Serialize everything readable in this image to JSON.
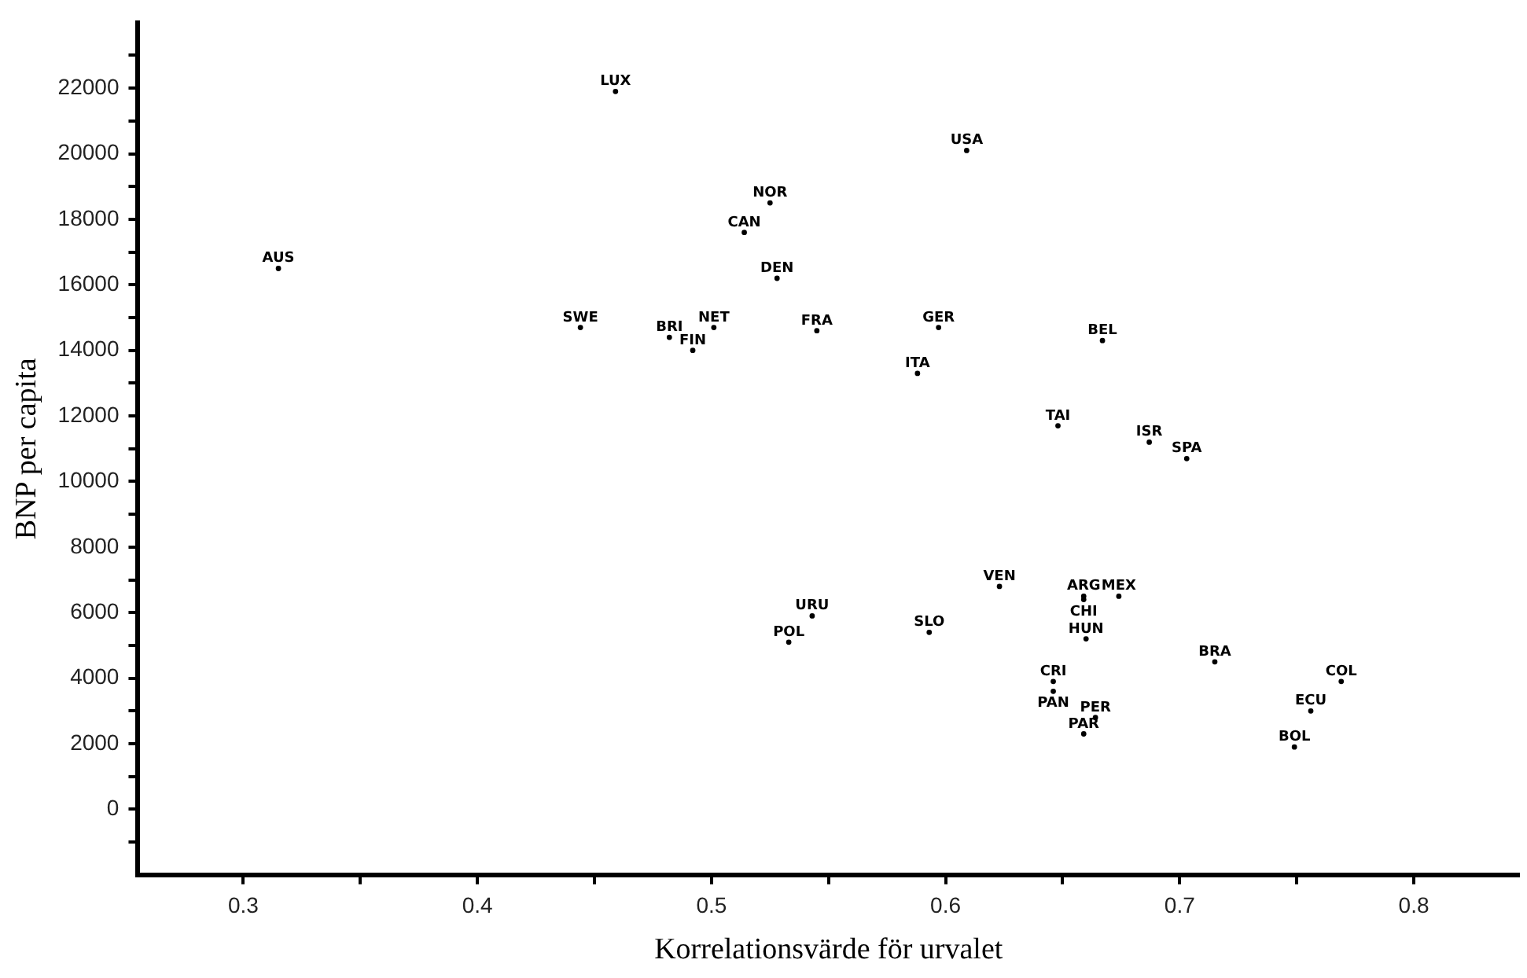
{
  "chart_data": {
    "type": "scatter",
    "xlabel": "Korrelationsvärde för urvalet",
    "ylabel": "BNP per capita",
    "marker": "circle",
    "grid": false,
    "legend": false,
    "xlim": [
      0.255,
      0.845
    ],
    "xticks": [
      0.3,
      {
        "value": 0.35,
        "label": null
      },
      0.4,
      {
        "value": 0.45,
        "label": null
      },
      0.5,
      {
        "value": 0.55,
        "label": null
      },
      0.6,
      {
        "value": 0.65,
        "label": null
      },
      0.7,
      {
        "value": 0.75,
        "label": null
      },
      0.8
    ],
    "ylim": [
      -2000,
      24000
    ],
    "yticks": [
      {
        "value": -1000,
        "label": null
      },
      0,
      {
        "value": 1000,
        "label": null
      },
      2000,
      {
        "value": 3000,
        "label": null
      },
      4000,
      {
        "value": 5000,
        "label": null
      },
      6000,
      {
        "value": 7000,
        "label": null
      },
      8000,
      {
        "value": 9000,
        "label": null
      },
      10000,
      {
        "value": 11000,
        "label": null
      },
      12000,
      {
        "value": 13000,
        "label": null
      },
      14000,
      {
        "value": 15000,
        "label": null
      },
      16000,
      {
        "value": 17000,
        "label": null
      },
      18000,
      {
        "value": 19000,
        "label": null
      },
      20000,
      {
        "value": 21000,
        "label": null
      },
      22000,
      {
        "value": 23000,
        "label": null
      }
    ],
    "series": [
      {
        "color": "#000000",
        "x": [
          0.459,
          0.609,
          0.525,
          0.514,
          0.528,
          0.315,
          0.444,
          0.482,
          0.501,
          0.492,
          0.545,
          0.597,
          0.588,
          0.667,
          0.648,
          0.687,
          0.703,
          0.623,
          0.659,
          0.659,
          0.674,
          0.543,
          0.593,
          0.533,
          0.66,
          0.715,
          0.646,
          0.646,
          0.769,
          0.756,
          0.664,
          0.659,
          0.749
        ],
        "values": [
          21900,
          20100,
          18500,
          17600,
          16200,
          16500,
          14700,
          14400,
          14700,
          14000,
          14600,
          14700,
          13300,
          14300,
          11700,
          11200,
          10700,
          6800,
          6500,
          6400,
          6500,
          5900,
          5400,
          5100,
          5200,
          4500,
          3900,
          3600,
          3900,
          3000,
          2800,
          2300,
          1900
        ],
        "value_labels": [
          "LUX",
          "USA",
          "NOR",
          "CAN",
          "DEN",
          "AUS",
          "SWE",
          "BRI",
          "NET",
          "FIN",
          "FRA",
          "GER",
          "ITA",
          "BEL",
          "TAI",
          "ISR",
          "SPA",
          "VEN",
          "ARG",
          "CHI",
          "MEX",
          "URU",
          "SLO",
          "POL",
          "HUN",
          "BRA",
          "CRI",
          "PAN",
          "COL",
          "ECU",
          "PER",
          "PAR",
          "BOL"
        ]
      }
    ]
  }
}
